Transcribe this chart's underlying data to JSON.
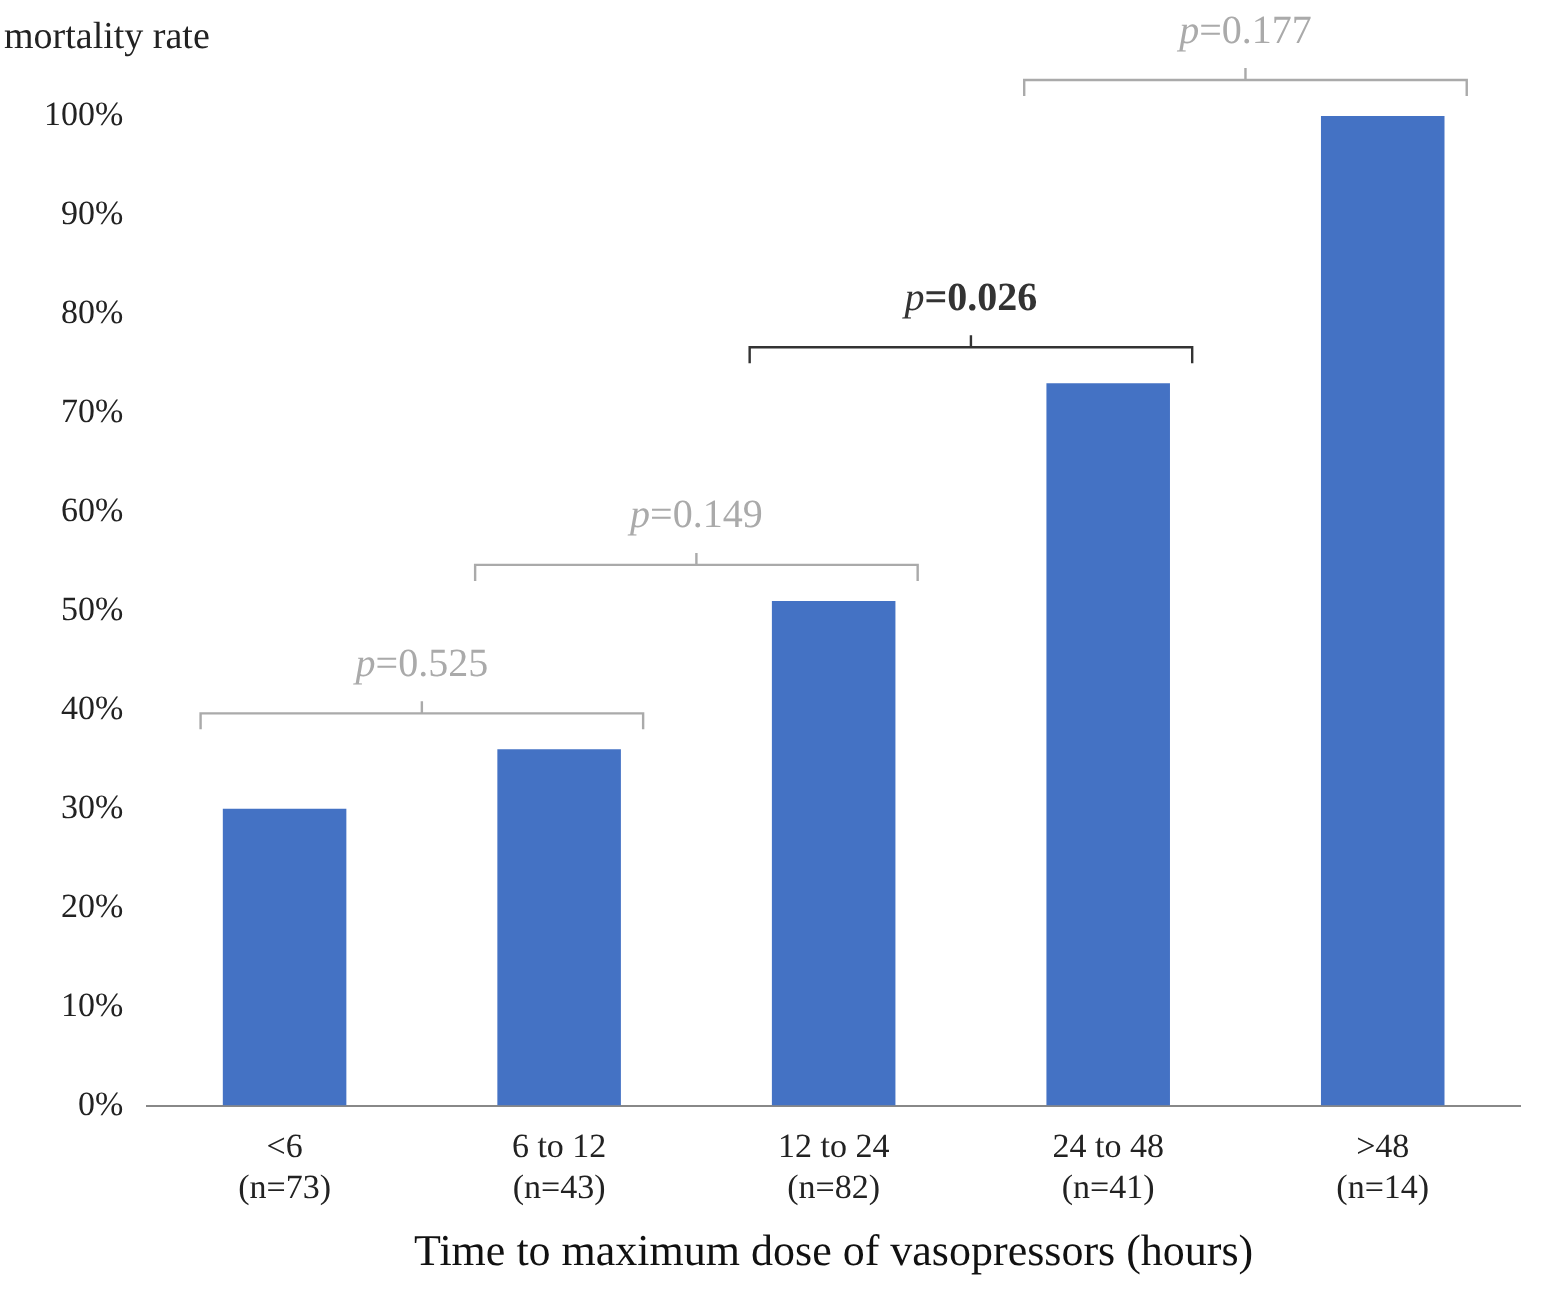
{
  "chart_data": {
    "type": "bar",
    "ylabel": "mortality rate",
    "xlabel": "Time to maximum dose of vasopressors (hours)",
    "categories": [
      "<6\n(n=73)",
      "6 to 12\n(n=43)",
      "12 to 24\n(n=82)",
      "24 to 48\n(n=41)",
      ">48\n(n=14)"
    ],
    "values": [
      30,
      36,
      51,
      73,
      100
    ],
    "color": "#4472c4",
    "ylim": [
      0,
      100
    ],
    "yticks": [
      {
        "value": 0,
        "label": "0%"
      },
      {
        "value": 10,
        "label": "10%"
      },
      {
        "value": 20,
        "label": "20%"
      },
      {
        "value": 30,
        "label": "30%"
      },
      {
        "value": 40,
        "label": "40%"
      },
      {
        "value": 50,
        "label": "50%"
      },
      {
        "value": 60,
        "label": "60%"
      },
      {
        "value": 70,
        "label": "70%"
      },
      {
        "value": 80,
        "label": "80%"
      },
      {
        "value": 90,
        "label": "90%"
      },
      {
        "value": 100,
        "label": "100%"
      }
    ],
    "grid": false,
    "legend": false,
    "annotations": [
      "p=0.525",
      "p=0.149",
      "p=0.026",
      "p=0.177"
    ]
  }
}
